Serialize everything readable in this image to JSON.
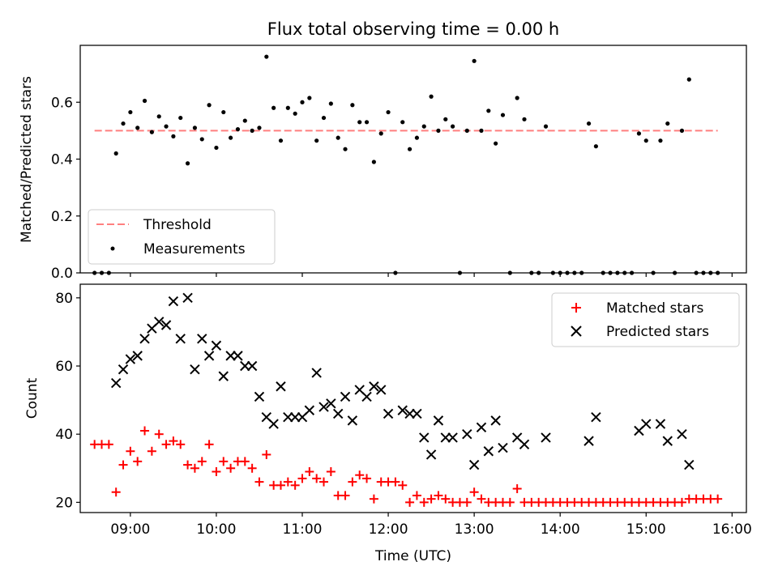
{
  "chart_data": [
    {
      "type": "scatter",
      "title": "Flux total observing time = 0.00 h",
      "xlabel": "",
      "ylabel": "Matched/Predicted stars",
      "xlim": [
        "08:25",
        "16:10"
      ],
      "ylim": [
        0.0,
        0.8
      ],
      "yticks": [
        0.0,
        0.2,
        0.4,
        0.6
      ],
      "ytick_labels": [
        "0.0",
        "0.2",
        "0.4",
        "0.6"
      ],
      "grid": false,
      "legend": "bottom-left",
      "legend_entries": [
        "Threshold",
        "Measurements"
      ],
      "series": [
        {
          "name": "Threshold",
          "kind": "dashed-line",
          "color": "#ff7f7f",
          "points": [
            [
              "08:35",
              0.5
            ],
            [
              "15:50",
              0.5
            ]
          ]
        },
        {
          "name": "Measurements",
          "kind": "dot",
          "color": "#000000",
          "points": [
            [
              "08:35",
              0.0
            ],
            [
              "08:40",
              0.0
            ],
            [
              "08:45",
              0.0
            ],
            [
              "08:50",
              0.42
            ],
            [
              "08:55",
              0.525
            ],
            [
              "09:00",
              0.565
            ],
            [
              "09:05",
              0.51
            ],
            [
              "09:10",
              0.605
            ],
            [
              "09:15",
              0.495
            ],
            [
              "09:20",
              0.55
            ],
            [
              "09:25",
              0.515
            ],
            [
              "09:30",
              0.48
            ],
            [
              "09:35",
              0.545
            ],
            [
              "09:40",
              0.385
            ],
            [
              "09:45",
              0.51
            ],
            [
              "09:50",
              0.47
            ],
            [
              "09:55",
              0.59
            ],
            [
              "10:00",
              0.44
            ],
            [
              "10:05",
              0.565
            ],
            [
              "10:10",
              0.475
            ],
            [
              "10:15",
              0.505
            ],
            [
              "10:20",
              0.535
            ],
            [
              "10:25",
              0.5
            ],
            [
              "10:30",
              0.51
            ],
            [
              "10:35",
              0.76
            ],
            [
              "10:40",
              0.58
            ],
            [
              "10:45",
              0.465
            ],
            [
              "10:50",
              0.58
            ],
            [
              "10:55",
              0.56
            ],
            [
              "11:00",
              0.6
            ],
            [
              "11:05",
              0.615
            ],
            [
              "11:10",
              0.465
            ],
            [
              "11:15",
              0.545
            ],
            [
              "11:20",
              0.595
            ],
            [
              "11:25",
              0.475
            ],
            [
              "11:30",
              0.435
            ],
            [
              "11:35",
              0.59
            ],
            [
              "11:40",
              0.53
            ],
            [
              "11:45",
              0.53
            ],
            [
              "11:50",
              0.39
            ],
            [
              "11:55",
              0.49
            ],
            [
              "12:00",
              0.565
            ],
            [
              "12:05",
              0.0
            ],
            [
              "12:10",
              0.53
            ],
            [
              "12:15",
              0.435
            ],
            [
              "12:20",
              0.475
            ],
            [
              "12:25",
              0.515
            ],
            [
              "12:30",
              0.62
            ],
            [
              "12:35",
              0.5
            ],
            [
              "12:40",
              0.54
            ],
            [
              "12:45",
              0.515
            ],
            [
              "12:50",
              0.0
            ],
            [
              "12:55",
              0.5
            ],
            [
              "13:00",
              0.745
            ],
            [
              "13:05",
              0.5
            ],
            [
              "13:10",
              0.57
            ],
            [
              "13:15",
              0.455
            ],
            [
              "13:20",
              0.555
            ],
            [
              "13:25",
              0.0
            ],
            [
              "13:30",
              0.615
            ],
            [
              "13:35",
              0.54
            ],
            [
              "13:40",
              0.0
            ],
            [
              "13:45",
              0.0
            ],
            [
              "13:50",
              0.515
            ],
            [
              "13:55",
              0.0
            ],
            [
              "14:00",
              0.0
            ],
            [
              "14:05",
              0.0
            ],
            [
              "14:10",
              0.0
            ],
            [
              "14:15",
              0.0
            ],
            [
              "14:20",
              0.525
            ],
            [
              "14:25",
              0.445
            ],
            [
              "14:30",
              0.0
            ],
            [
              "14:35",
              0.0
            ],
            [
              "14:40",
              0.0
            ],
            [
              "14:45",
              0.0
            ],
            [
              "14:50",
              0.0
            ],
            [
              "14:55",
              0.49
            ],
            [
              "15:00",
              0.465
            ],
            [
              "15:05",
              0.0
            ],
            [
              "15:10",
              0.465
            ],
            [
              "15:15",
              0.525
            ],
            [
              "15:20",
              0.0
            ],
            [
              "15:25",
              0.5
            ],
            [
              "15:30",
              0.68
            ],
            [
              "15:35",
              0.0
            ],
            [
              "15:40",
              0.0
            ],
            [
              "15:45",
              0.0
            ],
            [
              "15:50",
              0.0
            ]
          ]
        }
      ]
    },
    {
      "type": "scatter",
      "title": "",
      "xlabel": "Time (UTC)",
      "ylabel": "Count",
      "xlim": [
        "08:25",
        "16:10"
      ],
      "ylim": [
        17,
        84
      ],
      "yticks": [
        20,
        40,
        60,
        80
      ],
      "ytick_labels": [
        "20",
        "40",
        "60",
        "80"
      ],
      "xticks": [
        "09:00",
        "10:00",
        "11:00",
        "12:00",
        "13:00",
        "14:00",
        "15:00",
        "16:00"
      ],
      "grid": false,
      "legend": "top-right",
      "legend_entries": [
        "Matched stars",
        "Predicted stars"
      ],
      "series": [
        {
          "name": "Matched stars",
          "kind": "plus",
          "color": "#ff0000",
          "points": [
            [
              "08:35",
              37
            ],
            [
              "08:40",
              37
            ],
            [
              "08:45",
              37
            ],
            [
              "08:50",
              23
            ],
            [
              "08:55",
              31
            ],
            [
              "09:00",
              35
            ],
            [
              "09:05",
              32
            ],
            [
              "09:10",
              41
            ],
            [
              "09:15",
              35
            ],
            [
              "09:20",
              40
            ],
            [
              "09:25",
              37
            ],
            [
              "09:30",
              38
            ],
            [
              "09:35",
              37
            ],
            [
              "09:40",
              31
            ],
            [
              "09:45",
              30
            ],
            [
              "09:50",
              32
            ],
            [
              "09:55",
              37
            ],
            [
              "10:00",
              29
            ],
            [
              "10:05",
              32
            ],
            [
              "10:10",
              30
            ],
            [
              "10:15",
              32
            ],
            [
              "10:20",
              32
            ],
            [
              "10:25",
              30
            ],
            [
              "10:30",
              26
            ],
            [
              "10:35",
              34
            ],
            [
              "10:40",
              25
            ],
            [
              "10:45",
              25
            ],
            [
              "10:50",
              26
            ],
            [
              "10:55",
              25
            ],
            [
              "11:00",
              27
            ],
            [
              "11:05",
              29
            ],
            [
              "11:10",
              27
            ],
            [
              "11:15",
              26
            ],
            [
              "11:20",
              29
            ],
            [
              "11:25",
              22
            ],
            [
              "11:30",
              22
            ],
            [
              "11:35",
              26
            ],
            [
              "11:40",
              28
            ],
            [
              "11:45",
              27
            ],
            [
              "11:50",
              21
            ],
            [
              "11:55",
              26
            ],
            [
              "12:00",
              26
            ],
            [
              "12:05",
              26
            ],
            [
              "12:10",
              25
            ],
            [
              "12:15",
              20
            ],
            [
              "12:20",
              22
            ],
            [
              "12:25",
              20
            ],
            [
              "12:30",
              21
            ],
            [
              "12:35",
              22
            ],
            [
              "12:40",
              21
            ],
            [
              "12:45",
              20
            ],
            [
              "12:50",
              20
            ],
            [
              "12:55",
              20
            ],
            [
              "13:00",
              23
            ],
            [
              "13:05",
              21
            ],
            [
              "13:10",
              20
            ],
            [
              "13:15",
              20
            ],
            [
              "13:20",
              20
            ],
            [
              "13:25",
              20
            ],
            [
              "13:30",
              24
            ],
            [
              "13:35",
              20
            ],
            [
              "13:40",
              20
            ],
            [
              "13:45",
              20
            ],
            [
              "13:50",
              20
            ],
            [
              "13:55",
              20
            ],
            [
              "14:00",
              20
            ],
            [
              "14:05",
              20
            ],
            [
              "14:10",
              20
            ],
            [
              "14:15",
              20
            ],
            [
              "14:20",
              20
            ],
            [
              "14:25",
              20
            ],
            [
              "14:30",
              20
            ],
            [
              "14:35",
              20
            ],
            [
              "14:40",
              20
            ],
            [
              "14:45",
              20
            ],
            [
              "14:50",
              20
            ],
            [
              "14:55",
              20
            ],
            [
              "15:00",
              20
            ],
            [
              "15:05",
              20
            ],
            [
              "15:10",
              20
            ],
            [
              "15:15",
              20
            ],
            [
              "15:20",
              20
            ],
            [
              "15:25",
              20
            ],
            [
              "15:30",
              21
            ],
            [
              "15:35",
              21
            ],
            [
              "15:40",
              21
            ],
            [
              "15:45",
              21
            ],
            [
              "15:50",
              21
            ]
          ]
        },
        {
          "name": "Predicted stars",
          "kind": "cross",
          "color": "#000000",
          "points": [
            [
              "08:50",
              55
            ],
            [
              "08:55",
              59
            ],
            [
              "09:00",
              62
            ],
            [
              "09:05",
              63
            ],
            [
              "09:10",
              68
            ],
            [
              "09:15",
              71
            ],
            [
              "09:20",
              73
            ],
            [
              "09:25",
              72
            ],
            [
              "09:30",
              79
            ],
            [
              "09:35",
              68
            ],
            [
              "09:40",
              80
            ],
            [
              "09:45",
              59
            ],
            [
              "09:50",
              68
            ],
            [
              "09:55",
              63
            ],
            [
              "10:00",
              66
            ],
            [
              "10:05",
              57
            ],
            [
              "10:10",
              63
            ],
            [
              "10:15",
              63
            ],
            [
              "10:20",
              60
            ],
            [
              "10:25",
              60
            ],
            [
              "10:30",
              51
            ],
            [
              "10:35",
              45
            ],
            [
              "10:40",
              43
            ],
            [
              "10:45",
              54
            ],
            [
              "10:50",
              45
            ],
            [
              "10:55",
              45
            ],
            [
              "11:00",
              45
            ],
            [
              "11:05",
              47
            ],
            [
              "11:10",
              58
            ],
            [
              "11:15",
              48
            ],
            [
              "11:20",
              49
            ],
            [
              "11:25",
              46
            ],
            [
              "11:30",
              51
            ],
            [
              "11:35",
              44
            ],
            [
              "11:40",
              53
            ],
            [
              "11:45",
              51
            ],
            [
              "11:50",
              54
            ],
            [
              "11:55",
              53
            ],
            [
              "12:00",
              46
            ],
            [
              "12:10",
              47
            ],
            [
              "12:15",
              46
            ],
            [
              "12:20",
              46
            ],
            [
              "12:25",
              39
            ],
            [
              "12:30",
              34
            ],
            [
              "12:35",
              44
            ],
            [
              "12:40",
              39
            ],
            [
              "12:45",
              39
            ],
            [
              "12:55",
              40
            ],
            [
              "13:00",
              31
            ],
            [
              "13:05",
              42
            ],
            [
              "13:10",
              35
            ],
            [
              "13:15",
              44
            ],
            [
              "13:20",
              36
            ],
            [
              "13:30",
              39
            ],
            [
              "13:35",
              37
            ],
            [
              "13:50",
              39
            ],
            [
              "14:20",
              38
            ],
            [
              "14:25",
              45
            ],
            [
              "14:55",
              41
            ],
            [
              "15:00",
              43
            ],
            [
              "15:10",
              43
            ],
            [
              "15:15",
              38
            ],
            [
              "15:25",
              40
            ],
            [
              "15:30",
              31
            ]
          ]
        }
      ]
    }
  ]
}
